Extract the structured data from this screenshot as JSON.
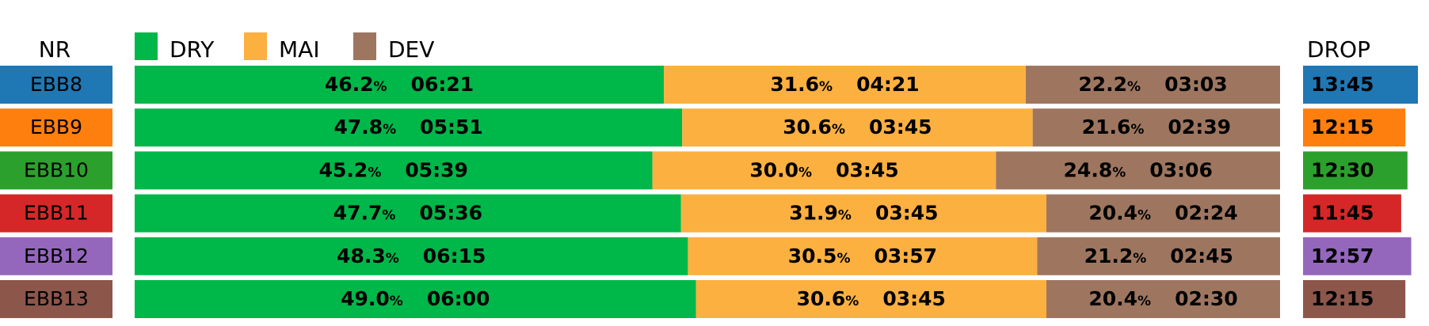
{
  "chart_data": {
    "type": "bar",
    "stacked": true,
    "orientation": "horizontal",
    "headers": {
      "left": "NR",
      "right": "DROP"
    },
    "legend": [
      {
        "label": "DRY",
        "color": "#00b74a"
      },
      {
        "label": "MAI",
        "color": "#fbb040"
      },
      {
        "label": "DEV",
        "color": "#9e7660"
      }
    ],
    "rows": [
      {
        "nr": "EBB8",
        "color": "#1f77b4",
        "drop": "13:45",
        "drop_minutes": 13.75,
        "segments": [
          {
            "pct": "46.2%",
            "time": "06:21"
          },
          {
            "pct": "31.6%",
            "time": "04:21"
          },
          {
            "pct": "22.2%",
            "time": "03:03"
          }
        ]
      },
      {
        "nr": "EBB9",
        "color": "#ff7f0e",
        "drop": "12:15",
        "drop_minutes": 12.25,
        "segments": [
          {
            "pct": "47.8%",
            "time": "05:51"
          },
          {
            "pct": "30.6%",
            "time": "03:45"
          },
          {
            "pct": "21.6%",
            "time": "02:39"
          }
        ]
      },
      {
        "nr": "EBB10",
        "color": "#2ca02c",
        "drop": "12:30",
        "drop_minutes": 12.5,
        "segments": [
          {
            "pct": "45.2%",
            "time": "05:39"
          },
          {
            "pct": "30.0%",
            "time": "03:45"
          },
          {
            "pct": "24.8%",
            "time": "03:06"
          }
        ]
      },
      {
        "nr": "EBB11",
        "color": "#d62728",
        "drop": "11:45",
        "drop_minutes": 11.75,
        "segments": [
          {
            "pct": "47.7%",
            "time": "05:36"
          },
          {
            "pct": "31.9%",
            "time": "03:45"
          },
          {
            "pct": "20.4%",
            "time": "02:24"
          }
        ]
      },
      {
        "nr": "EBB12",
        "color": "#9467bd",
        "drop": "12:57",
        "drop_minutes": 12.95,
        "segments": [
          {
            "pct": "48.3%",
            "time": "06:15"
          },
          {
            "pct": "30.5%",
            "time": "03:57"
          },
          {
            "pct": "21.2%",
            "time": "02:45"
          }
        ]
      },
      {
        "nr": "EBB13",
        "color": "#8c564b",
        "drop": "12:15",
        "drop_minutes": 12.25,
        "segments": [
          {
            "pct": "49.0%",
            "time": "06:00"
          },
          {
            "pct": "30.6%",
            "time": "03:45"
          },
          {
            "pct": "20.4%",
            "time": "02:30"
          }
        ]
      }
    ]
  }
}
